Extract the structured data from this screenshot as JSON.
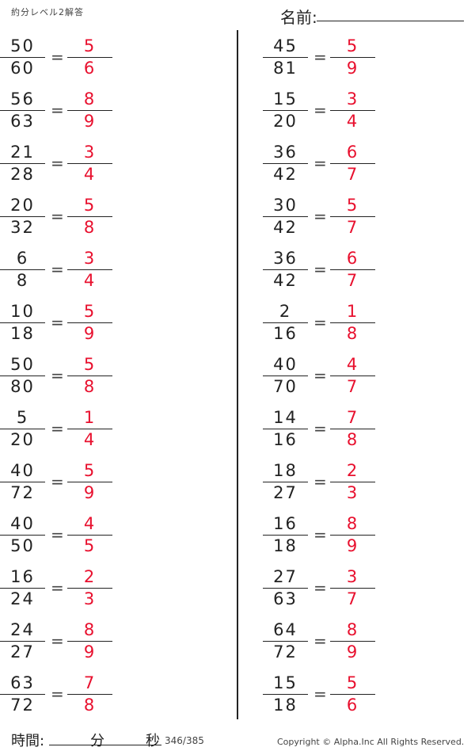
{
  "header": {
    "title": "約分レベル2解答",
    "name_label": "名前:"
  },
  "problems_left": [
    {
      "num": "50",
      "den": "60",
      "ans_num": "5",
      "ans_den": "6"
    },
    {
      "num": "56",
      "den": "63",
      "ans_num": "8",
      "ans_den": "9"
    },
    {
      "num": "21",
      "den": "28",
      "ans_num": "3",
      "ans_den": "4"
    },
    {
      "num": "20",
      "den": "32",
      "ans_num": "5",
      "ans_den": "8"
    },
    {
      "num": "6",
      "den": "8",
      "ans_num": "3",
      "ans_den": "4"
    },
    {
      "num": "10",
      "den": "18",
      "ans_num": "5",
      "ans_den": "9"
    },
    {
      "num": "50",
      "den": "80",
      "ans_num": "5",
      "ans_den": "8"
    },
    {
      "num": "5",
      "den": "20",
      "ans_num": "1",
      "ans_den": "4"
    },
    {
      "num": "40",
      "den": "72",
      "ans_num": "5",
      "ans_den": "9"
    },
    {
      "num": "40",
      "den": "50",
      "ans_num": "4",
      "ans_den": "5"
    },
    {
      "num": "16",
      "den": "24",
      "ans_num": "2",
      "ans_den": "3"
    },
    {
      "num": "24",
      "den": "27",
      "ans_num": "8",
      "ans_den": "9"
    },
    {
      "num": "63",
      "den": "72",
      "ans_num": "7",
      "ans_den": "8"
    }
  ],
  "problems_right": [
    {
      "num": "45",
      "den": "81",
      "ans_num": "5",
      "ans_den": "9"
    },
    {
      "num": "15",
      "den": "20",
      "ans_num": "3",
      "ans_den": "4"
    },
    {
      "num": "36",
      "den": "42",
      "ans_num": "6",
      "ans_den": "7"
    },
    {
      "num": "30",
      "den": "42",
      "ans_num": "5",
      "ans_den": "7"
    },
    {
      "num": "36",
      "den": "42",
      "ans_num": "6",
      "ans_den": "7"
    },
    {
      "num": "2",
      "den": "16",
      "ans_num": "1",
      "ans_den": "8"
    },
    {
      "num": "40",
      "den": "70",
      "ans_num": "4",
      "ans_den": "7"
    },
    {
      "num": "14",
      "den": "16",
      "ans_num": "7",
      "ans_den": "8"
    },
    {
      "num": "18",
      "den": "27",
      "ans_num": "2",
      "ans_den": "3"
    },
    {
      "num": "16",
      "den": "18",
      "ans_num": "8",
      "ans_den": "9"
    },
    {
      "num": "27",
      "den": "63",
      "ans_num": "3",
      "ans_den": "7"
    },
    {
      "num": "64",
      "den": "72",
      "ans_num": "8",
      "ans_den": "9"
    },
    {
      "num": "15",
      "den": "18",
      "ans_num": "5",
      "ans_den": "6"
    }
  ],
  "equals": "=",
  "footer": {
    "time_label": "時間:",
    "minutes_label": "分",
    "seconds_label": "秒",
    "page": "346/385",
    "copyright": "Copyright ©  Alpha.Inc All Rights Reserved."
  },
  "colors": {
    "answer": "#e8102e",
    "text": "#222222"
  }
}
